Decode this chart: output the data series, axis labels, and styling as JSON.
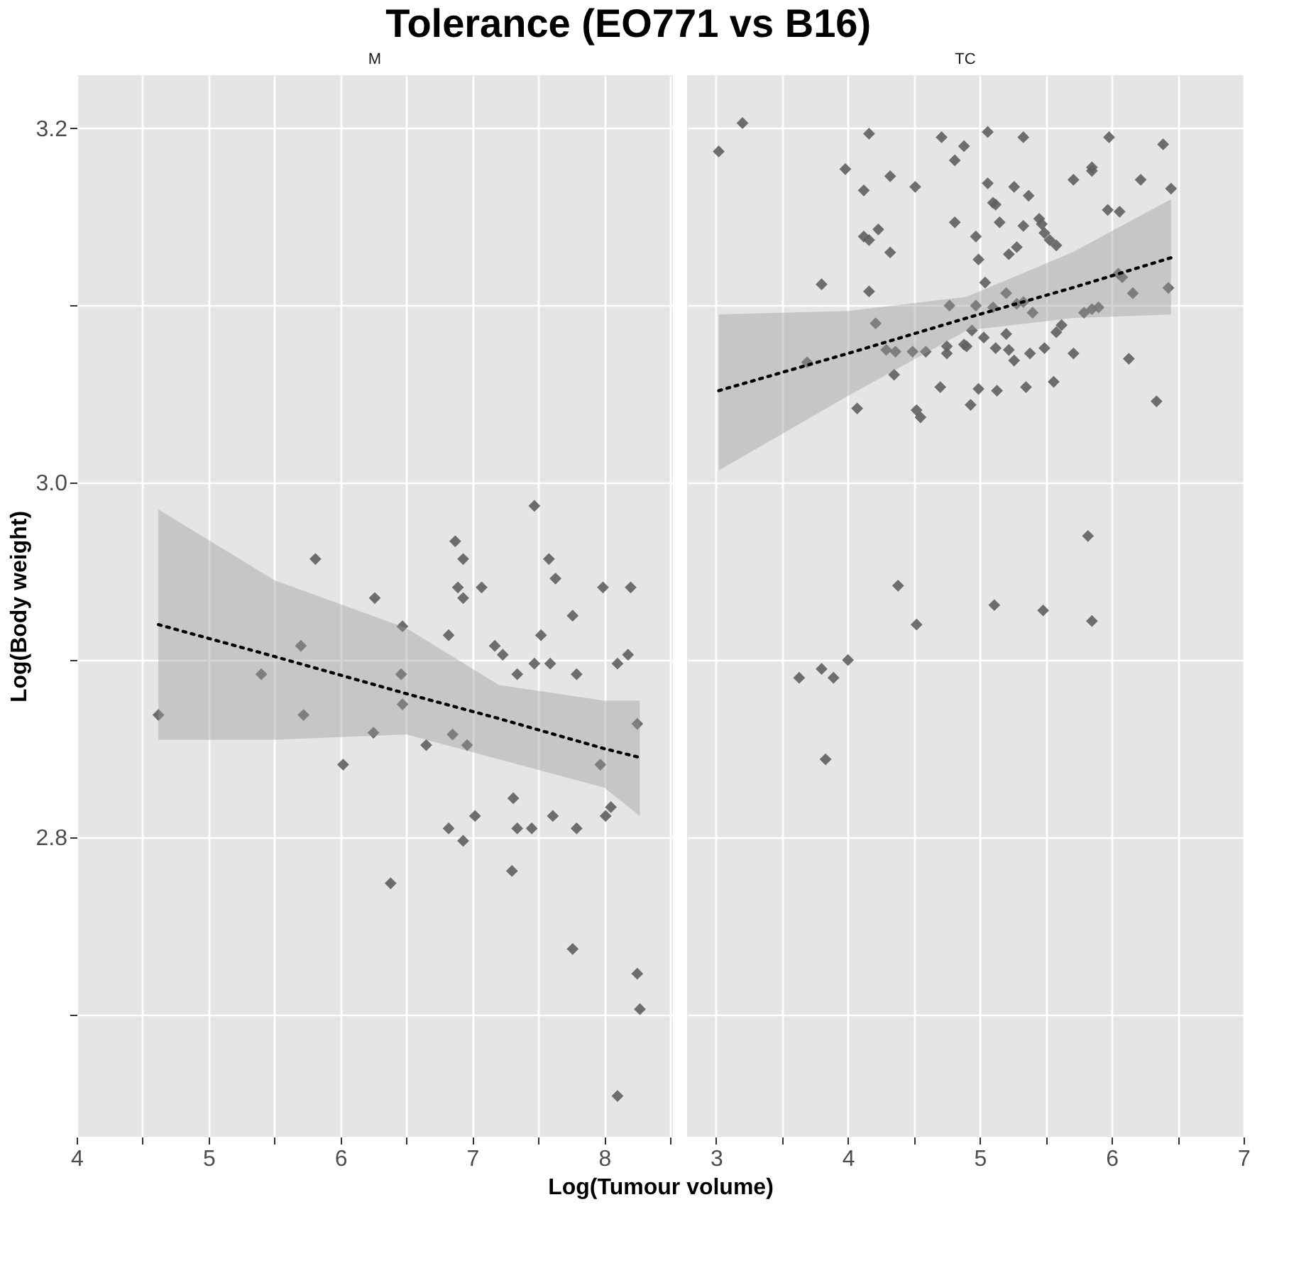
{
  "chart_data": [
    {
      "type": "scatter",
      "title": "Tolerance (EO771 vs B16)",
      "subtitle": "M",
      "xlabel": "Log(Tumour volume)",
      "ylabel": "Log(Body weight)",
      "grid": true,
      "xlim": [
        4,
        8.52
      ],
      "xticks": [
        4,
        {
          "value": 4.5,
          "label": null
        },
        5,
        {
          "value": 5.5,
          "label": null
        },
        6,
        {
          "value": 6.5,
          "label": null
        },
        7,
        {
          "value": 7.5,
          "label": null
        },
        8,
        {
          "value": 8.5,
          "label": null
        }
      ],
      "ylim": [
        2.631,
        3.23
      ],
      "yticks": [
        {
          "value": 2.7,
          "label": null
        },
        {
          "value": 2.8,
          "label": "2.8"
        },
        {
          "value": 2.9,
          "label": null
        },
        {
          "value": 3.0,
          "label": "3.0"
        },
        {
          "value": 3.1,
          "label": null
        },
        {
          "value": 3.2,
          "label": "3.2"
        }
      ],
      "series": [
        {
          "type": "scatter",
          "marker": "diamond",
          "color": "#5f5f5f",
          "x": [
            4.62,
            5.81,
            6.26,
            5.7,
            5.4,
            5.72,
            6.02,
            6.25,
            7.47,
            6.87,
            6.93,
            6.89,
            6.93,
            7.07,
            6.47,
            6.82,
            7.17,
            7.23,
            7.58,
            7.63,
            7.76,
            7.52,
            7.47,
            7.59,
            7.34,
            7.79,
            7.99,
            8.2,
            8.1,
            8.18,
            8.25,
            7.97,
            6.46,
            6.47,
            6.65,
            6.85,
            6.96,
            7.31,
            7.02,
            6.82,
            6.93,
            7.34,
            7.45,
            7.61,
            7.79,
            8.01,
            8.05,
            7.3,
            6.38,
            7.76,
            8.25,
            8.27,
            8.1
          ],
          "values": [
            2.869,
            2.957,
            2.935,
            2.908,
            2.892,
            2.869,
            2.841,
            2.859,
            2.987,
            2.967,
            2.957,
            2.941,
            2.935,
            2.941,
            2.919,
            2.914,
            2.908,
            2.903,
            2.957,
            2.946,
            2.925,
            2.914,
            2.898,
            2.898,
            2.892,
            2.892,
            2.941,
            2.941,
            2.898,
            2.903,
            2.864,
            2.841,
            2.892,
            2.875,
            2.852,
            2.858,
            2.852,
            2.822,
            2.812,
            2.805,
            2.798,
            2.805,
            2.805,
            2.812,
            2.805,
            2.812,
            2.817,
            2.781,
            2.774,
            2.737,
            2.723,
            2.703,
            2.654
          ]
        },
        {
          "type": "line",
          "color": "#000000",
          "line_style": "dotted",
          "x": [
            4.62,
            5.5,
            6.5,
            7.2,
            8.0,
            8.27
          ],
          "values": [
            2.92,
            2.902,
            2.881,
            2.867,
            2.85,
            2.845
          ],
          "lower": [
            2.855,
            2.855,
            2.858,
            2.844,
            2.828,
            2.812
          ],
          "upper": [
            2.985,
            2.945,
            2.918,
            2.886,
            2.877,
            2.877
          ]
        }
      ]
    },
    {
      "type": "scatter",
      "subtitle": "TC",
      "grid": true,
      "tick_labels": "x",
      "xlim": [
        2.78,
        7
      ],
      "xticks": [
        3,
        {
          "value": 3.5,
          "label": null
        },
        4,
        {
          "value": 4.5,
          "label": null
        },
        5,
        {
          "value": 5.5,
          "label": null
        },
        6,
        {
          "value": 6.5,
          "label": null
        },
        7
      ],
      "ylim": [
        2.631,
        3.23
      ],
      "yticks": [
        2.7,
        2.8,
        2.9,
        3,
        3.1,
        3.2
      ],
      "series": [
        {
          "type": "scatter",
          "marker": "diamond",
          "color": "#5f5f5f",
          "x": [
            3.02,
            3.2,
            4.16,
            3.98,
            4.32,
            4.12,
            4.51,
            4.71,
            4.88,
            4.81,
            4.12,
            4.16,
            4.23,
            4.32,
            4.81,
            3.8,
            4.16,
            4.77,
            4.21,
            3.69,
            4.29,
            4.36,
            4.49,
            4.59,
            4.75,
            4.75,
            4.9,
            4.35,
            4.7,
            4.07,
            4.52,
            4.55,
            4.93,
            5.06,
            5.33,
            5.98,
            6.39,
            5.85,
            5.85,
            5.71,
            6.22,
            6.45,
            5.06,
            5.26,
            5.37,
            5.1,
            5.12,
            5.15,
            5.45,
            5.47,
            5.33,
            5.49,
            5.53,
            5.58,
            4.97,
            5.28,
            5.22,
            4.99,
            5.97,
            6.06,
            6.05,
            6.08,
            6.16,
            6.43,
            5.04,
            5.2,
            4.97,
            5.1,
            5.28,
            5.33,
            5.4,
            5.79,
            5.85,
            5.9,
            5.62,
            5.58,
            4.94,
            4.88,
            5.03,
            5.2,
            5.12,
            5.22,
            5.26,
            5.38,
            5.49,
            5.71,
            6.13,
            4.99,
            5.13,
            5.35,
            5.56,
            6.34,
            3.63,
            3.8,
            3.89,
            4.0,
            3.83,
            4.38,
            4.52,
            5.11,
            5.48,
            5.82,
            5.85
          ],
          "values": [
            3.187,
            3.203,
            3.197,
            3.177,
            3.173,
            3.165,
            3.167,
            3.195,
            3.19,
            3.182,
            3.139,
            3.137,
            3.143,
            3.13,
            3.147,
            3.112,
            3.108,
            3.1,
            3.09,
            3.068,
            3.075,
            3.074,
            3.074,
            3.074,
            3.077,
            3.073,
            3.077,
            3.061,
            3.054,
            3.042,
            3.041,
            3.037,
            3.044,
            3.198,
            3.195,
            3.195,
            3.191,
            3.178,
            3.176,
            3.171,
            3.171,
            3.166,
            3.169,
            3.167,
            3.162,
            3.158,
            3.157,
            3.147,
            3.149,
            3.146,
            3.145,
            3.141,
            3.137,
            3.134,
            3.139,
            3.133,
            3.129,
            3.126,
            3.154,
            3.153,
            3.118,
            3.116,
            3.107,
            3.11,
            3.113,
            3.107,
            3.1,
            3.099,
            3.101,
            3.102,
            3.096,
            3.096,
            3.098,
            3.099,
            3.089,
            3.085,
            3.086,
            3.078,
            3.082,
            3.084,
            3.076,
            3.075,
            3.069,
            3.073,
            3.076,
            3.073,
            3.07,
            3.053,
            3.052,
            3.054,
            3.057,
            3.046,
            2.89,
            2.895,
            2.89,
            2.9,
            2.844,
            2.942,
            2.92,
            2.931,
            2.928,
            2.97,
            2.922
          ]
        },
        {
          "type": "line",
          "color": "#000000",
          "line_style": "dotted",
          "x": [
            3.02,
            4.0,
            4.9,
            5.7,
            6.45
          ],
          "values": [
            3.052,
            3.073,
            3.093,
            3.11,
            3.127
          ],
          "lower": [
            3.007,
            3.049,
            3.086,
            3.093,
            3.095
          ],
          "upper": [
            3.095,
            3.097,
            3.105,
            3.13,
            3.16
          ]
        }
      ]
    }
  ]
}
